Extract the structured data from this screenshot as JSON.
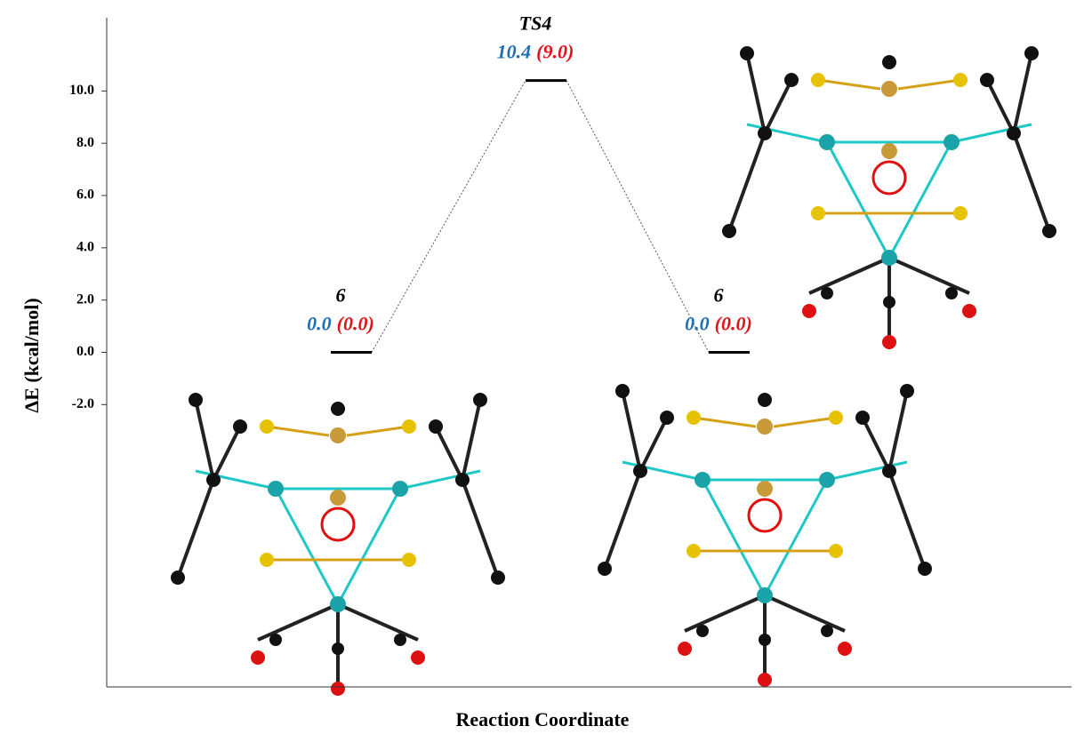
{
  "chart_data": {
    "type": "energy-profile",
    "y_label": "ΔE (kcal/mol)",
    "x_label": "Reaction Coordinate",
    "categories": [
      "6",
      "TS4",
      "6"
    ],
    "series": [
      {
        "color": "#1f6fb5",
        "values": [
          0.0,
          10.4,
          0.0
        ],
        "value_labels": [
          "0.0",
          "10.4",
          "0.0"
        ]
      },
      {
        "color": "#e0151b",
        "values": [
          0.0,
          9.0,
          0.0
        ],
        "value_labels": [
          "(0.0)",
          "(9.0)",
          "(0.0)"
        ]
      }
    ],
    "level_color": "#000000",
    "ylim": [
      -12.8,
      12.8
    ],
    "yticks": [
      {
        "value": -2,
        "label": "-2.0"
      },
      {
        "value": 0,
        "label": "0.0"
      },
      {
        "value": 2,
        "label": "2.0"
      },
      {
        "value": 4,
        "label": "4.0"
      },
      {
        "value": 6,
        "label": "6.0"
      },
      {
        "value": 8,
        "label": "8.0"
      },
      {
        "value": 10,
        "label": "10.0"
      }
    ]
  }
}
